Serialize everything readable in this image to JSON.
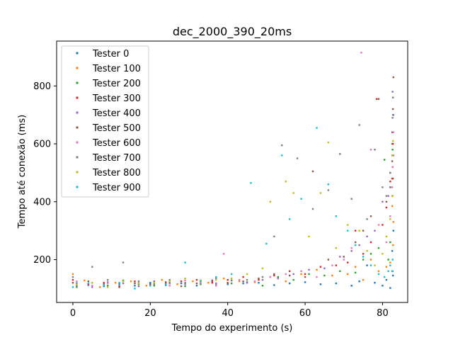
{
  "chart_data": {
    "type": "scatter",
    "title": "dec_2000_390_20ms",
    "xlabel": "Tempo do experimento (s)",
    "ylabel": "Tempo até conexão (ms)",
    "xlim": [
      -4.2,
      86.5
    ],
    "ylim": [
      52,
      955
    ],
    "xticks": [
      0,
      20,
      40,
      60,
      80
    ],
    "yticks": [
      200,
      400,
      600,
      800
    ],
    "grid": false,
    "legend_position": "top-left",
    "series": [
      {
        "name": "Tester 0",
        "color": "#1f77b4",
        "points": [
          [
            1,
            118
          ],
          [
            4,
            112
          ],
          [
            8,
            108
          ],
          [
            12,
            115
          ],
          [
            16,
            110
          ],
          [
            20,
            120
          ],
          [
            24,
            112
          ],
          [
            28,
            118
          ],
          [
            32,
            110
          ],
          [
            36,
            125
          ],
          [
            40,
            115
          ],
          [
            44,
            118
          ],
          [
            48,
            120
          ],
          [
            52,
            112
          ],
          [
            56,
            118
          ],
          [
            60,
            122
          ],
          [
            64,
            115
          ],
          [
            68,
            118
          ],
          [
            72,
            110
          ],
          [
            74,
            125
          ],
          [
            76,
            180
          ],
          [
            78,
            120
          ],
          [
            80,
            110
          ],
          [
            81,
            130
          ],
          [
            82,
            102
          ],
          [
            82.5,
            230
          ],
          [
            82.6,
            160
          ],
          [
            82.7,
            145
          ],
          [
            82.8,
            300
          ]
        ]
      },
      {
        "name": "Tester 100",
        "color": "#ff7f0e",
        "points": [
          [
            0,
            150
          ],
          [
            3,
            128
          ],
          [
            7,
            105
          ],
          [
            11,
            120
          ],
          [
            15,
            125
          ],
          [
            19,
            110
          ],
          [
            23,
            130
          ],
          [
            27,
            115
          ],
          [
            31,
            125
          ],
          [
            35,
            120
          ],
          [
            39,
            135
          ],
          [
            43,
            125
          ],
          [
            47,
            122
          ],
          [
            51,
            140
          ],
          [
            55,
            125
          ],
          [
            59,
            150
          ],
          [
            63,
            165
          ],
          [
            67,
            145
          ],
          [
            71,
            150
          ],
          [
            73,
            175
          ],
          [
            75,
            130
          ],
          [
            77,
            200
          ],
          [
            79,
            160
          ],
          [
            81,
            175
          ],
          [
            82,
            190
          ],
          [
            82.5,
            385
          ],
          [
            82.6,
            420
          ],
          [
            82.7,
            250
          ],
          [
            82.8,
            330
          ]
        ]
      },
      {
        "name": "Tester 200",
        "color": "#2ca02c",
        "points": [
          [
            1,
            105
          ],
          [
            5,
            120
          ],
          [
            9,
            110
          ],
          [
            13,
            128
          ],
          [
            17,
            115
          ],
          [
            21,
            110
          ],
          [
            25,
            120
          ],
          [
            29,
            108
          ],
          [
            33,
            115
          ],
          [
            37,
            112
          ],
          [
            41,
            118
          ],
          [
            45,
            122
          ],
          [
            49,
            110
          ],
          [
            53,
            140
          ],
          [
            57,
            130
          ],
          [
            61,
            150
          ],
          [
            65,
            145
          ],
          [
            69,
            160
          ],
          [
            73,
            155
          ],
          [
            75,
            200
          ],
          [
            77,
            220
          ],
          [
            79,
            240
          ],
          [
            80.5,
            545
          ],
          [
            81.5,
            200
          ],
          [
            82,
            260
          ],
          [
            82.5,
            600
          ],
          [
            82.6,
            580
          ],
          [
            82.7,
            480
          ],
          [
            82.8,
            700
          ]
        ]
      },
      {
        "name": "Tester 300",
        "color": "#d62728",
        "points": [
          [
            0,
            130
          ],
          [
            4,
            115
          ],
          [
            8,
            120
          ],
          [
            12,
            108
          ],
          [
            16,
            125
          ],
          [
            20,
            115
          ],
          [
            24,
            118
          ],
          [
            28,
            125
          ],
          [
            32,
            130
          ],
          [
            36,
            120
          ],
          [
            40,
            130
          ],
          [
            44,
            140
          ],
          [
            48,
            130
          ],
          [
            52,
            145
          ],
          [
            56,
            160
          ],
          [
            60,
            150
          ],
          [
            64,
            175
          ],
          [
            68,
            180
          ],
          [
            71,
            190
          ],
          [
            73,
            300
          ],
          [
            75,
            220
          ],
          [
            77,
            260
          ],
          [
            78.5,
            755
          ],
          [
            80,
            320
          ],
          [
            81,
            380
          ],
          [
            82,
            470
          ],
          [
            82.5,
            480
          ],
          [
            82.6,
            520
          ],
          [
            82.7,
            600
          ]
        ]
      },
      {
        "name": "Tester 400",
        "color": "#9467bd",
        "points": [
          [
            1,
            110
          ],
          [
            5,
            105
          ],
          [
            9,
            122
          ],
          [
            13,
            118
          ],
          [
            17,
            108
          ],
          [
            21,
            125
          ],
          [
            25,
            118
          ],
          [
            29,
            115
          ],
          [
            33,
            125
          ],
          [
            37,
            118
          ],
          [
            41,
            128
          ],
          [
            45,
            120
          ],
          [
            49,
            130
          ],
          [
            53,
            135
          ],
          [
            57,
            150
          ],
          [
            61,
            165
          ],
          [
            65,
            170
          ],
          [
            69,
            210
          ],
          [
            72,
            230
          ],
          [
            74,
            250
          ],
          [
            76,
            280
          ],
          [
            78,
            300
          ],
          [
            80,
            400
          ],
          [
            81.5,
            420
          ],
          [
            82,
            500
          ],
          [
            82.5,
            640
          ],
          [
            82.6,
            780
          ],
          [
            82.7,
            700
          ],
          [
            82.8,
            560
          ]
        ]
      },
      {
        "name": "Tester 500",
        "color": "#8c564b",
        "points": [
          [
            0,
            120
          ],
          [
            4,
            125
          ],
          [
            8,
            115
          ],
          [
            12,
            105
          ],
          [
            16,
            118
          ],
          [
            20,
            112
          ],
          [
            24,
            122
          ],
          [
            28,
            108
          ],
          [
            32,
            118
          ],
          [
            36,
            128
          ],
          [
            40,
            120
          ],
          [
            44,
            125
          ],
          [
            48,
            135
          ],
          [
            52,
            150
          ],
          [
            56,
            145
          ],
          [
            60,
            140
          ],
          [
            62,
            505
          ],
          [
            66,
            200
          ],
          [
            70,
            210
          ],
          [
            73,
            260
          ],
          [
            75,
            300
          ],
          [
            77,
            350
          ],
          [
            79,
            755
          ],
          [
            81,
            400
          ],
          [
            82,
            450
          ],
          [
            82.5,
            540
          ],
          [
            82.6,
            640
          ],
          [
            82.7,
            720
          ],
          [
            82.8,
            830
          ]
        ]
      },
      {
        "name": "Tester 600",
        "color": "#e377c2",
        "points": [
          [
            1,
            125
          ],
          [
            5,
            110
          ],
          [
            9,
            118
          ],
          [
            13,
            125
          ],
          [
            17,
            120
          ],
          [
            21,
            118
          ],
          [
            25,
            110
          ],
          [
            29,
            128
          ],
          [
            33,
            120
          ],
          [
            37,
            110
          ],
          [
            39,
            220
          ],
          [
            43,
            130
          ],
          [
            47,
            125
          ],
          [
            51,
            140
          ],
          [
            55,
            150
          ],
          [
            59,
            160
          ],
          [
            63,
            140
          ],
          [
            67,
            180
          ],
          [
            70,
            200
          ],
          [
            72,
            240
          ],
          [
            74.5,
            915
          ],
          [
            77,
            580
          ],
          [
            79,
            320
          ],
          [
            81,
            260
          ],
          [
            82,
            350
          ],
          [
            82.5,
            450
          ],
          [
            82.6,
            520
          ],
          [
            82.7,
            760
          ],
          [
            82.8,
            640
          ]
        ]
      },
      {
        "name": "Tester 700",
        "color": "#7f7f7f",
        "points": [
          [
            0,
            140
          ],
          [
            5,
            175
          ],
          [
            9,
            130
          ],
          [
            13,
            190
          ],
          [
            17,
            125
          ],
          [
            21,
            115
          ],
          [
            25,
            130
          ],
          [
            29,
            120
          ],
          [
            33,
            128
          ],
          [
            37,
            135
          ],
          [
            41,
            128
          ],
          [
            45,
            130
          ],
          [
            49,
            140
          ],
          [
            52,
            280
          ],
          [
            54,
            595
          ],
          [
            58,
            550
          ],
          [
            62,
            375
          ],
          [
            66,
            440
          ],
          [
            69,
            565
          ],
          [
            72,
            410
          ],
          [
            74,
            665
          ],
          [
            76,
            340
          ],
          [
            78,
            580
          ],
          [
            80,
            450
          ],
          [
            81,
            420
          ],
          [
            82,
            500
          ],
          [
            82.5,
            560
          ],
          [
            82.6,
            690
          ],
          [
            82.7,
            760
          ]
        ]
      },
      {
        "name": "Tester 800",
        "color": "#bcbd22",
        "points": [
          [
            1,
            115
          ],
          [
            5,
            120
          ],
          [
            9,
            105
          ],
          [
            13,
            125
          ],
          [
            17,
            118
          ],
          [
            21,
            120
          ],
          [
            25,
            125
          ],
          [
            29,
            135
          ],
          [
            33,
            128
          ],
          [
            37,
            130
          ],
          [
            41,
            135
          ],
          [
            45,
            150
          ],
          [
            49,
            170
          ],
          [
            51,
            400
          ],
          [
            55,
            470
          ],
          [
            57,
            430
          ],
          [
            61,
            280
          ],
          [
            64,
            430
          ],
          [
            66,
            605
          ],
          [
            68,
            240
          ],
          [
            71,
            320
          ],
          [
            74,
            300
          ],
          [
            76,
            230
          ],
          [
            78,
            180
          ],
          [
            80,
            220
          ],
          [
            81,
            280
          ],
          [
            82,
            340
          ],
          [
            82.5,
            420
          ],
          [
            82.6,
            560
          ],
          [
            82.7,
            610
          ]
        ]
      },
      {
        "name": "Tester 900",
        "color": "#17becf",
        "points": [
          [
            0,
            105
          ],
          [
            4,
            118
          ],
          [
            8,
            112
          ],
          [
            12,
            120
          ],
          [
            16,
            100
          ],
          [
            20,
            110
          ],
          [
            24,
            115
          ],
          [
            29,
            190
          ],
          [
            33,
            125
          ],
          [
            37,
            140
          ],
          [
            41,
            150
          ],
          [
            46,
            465
          ],
          [
            50,
            255
          ],
          [
            54,
            560
          ],
          [
            56,
            340
          ],
          [
            59,
            410
          ],
          [
            63,
            655
          ],
          [
            66,
            460
          ],
          [
            68,
            350
          ],
          [
            71,
            300
          ],
          [
            73,
            250
          ],
          [
            75,
            210
          ],
          [
            77,
            180
          ],
          [
            79,
            150
          ],
          [
            80.5,
            140
          ],
          [
            81.5,
            160
          ],
          [
            82,
            180
          ],
          [
            82.5,
            160
          ],
          [
            82.6,
            200
          ]
        ]
      }
    ]
  }
}
